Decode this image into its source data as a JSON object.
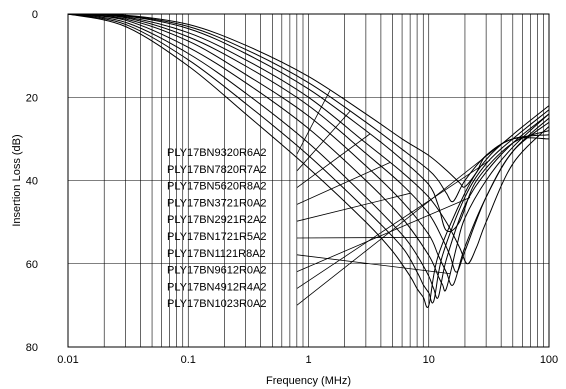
{
  "chart_data": {
    "type": "line",
    "title": "",
    "xlabel": "Frequency (MHz)",
    "ylabel": "Insertion Loss (dB)",
    "xscale": "log",
    "xlim": [
      0.01,
      100
    ],
    "ylim": [
      0,
      80
    ],
    "y_inverted": true,
    "grid": true,
    "x_ticks": [
      0.01,
      0.1,
      1,
      10,
      100
    ],
    "x_tick_labels": [
      "0.01",
      "0.1",
      "1",
      "10",
      "100"
    ],
    "y_ticks": [
      0,
      20,
      40,
      60,
      80
    ],
    "y_tick_labels": [
      "0",
      "20",
      "40",
      "60",
      "80"
    ],
    "line_color": "#000000",
    "series": [
      {
        "name": "PLY17BN9320R6A2",
        "x": [
          0.01,
          0.03,
          0.1,
          0.3,
          1,
          3,
          6,
          10,
          14,
          18,
          20,
          25,
          30,
          50,
          100
        ],
        "values": [
          0,
          0.3,
          2.5,
          7.5,
          15,
          24,
          30,
          34,
          37.5,
          40.5,
          41.5,
          38,
          34,
          30,
          30
        ]
      },
      {
        "name": "PLY17BN7820R7A2",
        "x": [
          0.01,
          0.03,
          0.1,
          0.3,
          1,
          3,
          6,
          10,
          12,
          14,
          16,
          20,
          30,
          50,
          100
        ],
        "values": [
          0,
          0.4,
          3,
          8.5,
          16.5,
          26,
          32.5,
          37.5,
          40,
          43,
          45,
          40,
          34,
          30,
          29
        ]
      },
      {
        "name": "PLY17BN5620R8A2",
        "x": [
          0.01,
          0.03,
          0.1,
          0.3,
          1,
          3,
          6,
          10,
          12,
          14,
          18,
          25,
          50,
          100
        ],
        "values": [
          0,
          0.5,
          3.5,
          9.5,
          18,
          28,
          35,
          41,
          46,
          52,
          50,
          40,
          31,
          28
        ]
      },
      {
        "name": "PLY17BN3721R0A2",
        "x": [
          0.01,
          0.03,
          0.1,
          0.3,
          1,
          3,
          6,
          10,
          14,
          18,
          21,
          25,
          30,
          50,
          100
        ],
        "values": [
          0,
          0.7,
          4.5,
          11,
          20,
          31,
          38,
          44,
          50,
          56,
          60,
          56,
          50,
          36,
          27
        ]
      },
      {
        "name": "PLY17BN2921R2A2",
        "x": [
          0.01,
          0.03,
          0.1,
          0.3,
          1,
          3,
          6,
          10,
          13,
          15,
          17,
          20,
          30,
          50,
          100
        ],
        "values": [
          0,
          0.9,
          5.5,
          12.5,
          22,
          33.5,
          41,
          48,
          54,
          58,
          62,
          57,
          44,
          33,
          26
        ]
      },
      {
        "name": "PLY17BN1721R5A2",
        "x": [
          0.01,
          0.03,
          0.1,
          0.3,
          1,
          3,
          6,
          10,
          12,
          14,
          16,
          20,
          30,
          50,
          100
        ],
        "values": [
          0,
          1.2,
          6.5,
          14.5,
          24.5,
          36.5,
          45,
          53,
          58,
          62,
          65,
          56,
          44,
          33,
          25
        ]
      },
      {
        "name": "PLY17BN1121R8A2",
        "x": [
          0.01,
          0.03,
          0.1,
          0.3,
          1,
          3,
          6,
          10,
          12,
          13,
          14,
          17,
          20,
          30,
          50,
          100
        ],
        "values": [
          0,
          1.5,
          8,
          16.5,
          27.5,
          40,
          49,
          58,
          63,
          65,
          66,
          56,
          49,
          40,
          32,
          24
        ]
      },
      {
        "name": "PLY17BN9612R0A2",
        "x": [
          0.01,
          0.03,
          0.1,
          0.3,
          1,
          3,
          6,
          8,
          10,
          11,
          12,
          14,
          20,
          30,
          50,
          100
        ],
        "values": [
          0,
          2,
          9.5,
          19,
          31,
          44,
          53,
          58,
          63,
          66,
          68,
          59,
          46,
          38,
          31,
          24
        ]
      },
      {
        "name": "PLY17BN4912R4A2",
        "x": [
          0.01,
          0.03,
          0.1,
          0.3,
          1,
          3,
          6,
          8,
          9,
          10,
          11,
          13,
          20,
          30,
          50,
          100
        ],
        "values": [
          0,
          2.5,
          11,
          21.5,
          34,
          47,
          56,
          62,
          65,
          67,
          69,
          58,
          44,
          36,
          30,
          23
        ]
      },
      {
        "name": "PLY17BN1023R0A2",
        "x": [
          0.01,
          0.03,
          0.1,
          0.3,
          1,
          3,
          5,
          7,
          8,
          9,
          10,
          12,
          20,
          30,
          50,
          100
        ],
        "values": [
          0,
          3,
          12.5,
          24,
          37,
          50,
          57,
          63,
          66,
          68,
          70,
          58,
          43,
          35,
          29,
          22
        ]
      }
    ]
  }
}
